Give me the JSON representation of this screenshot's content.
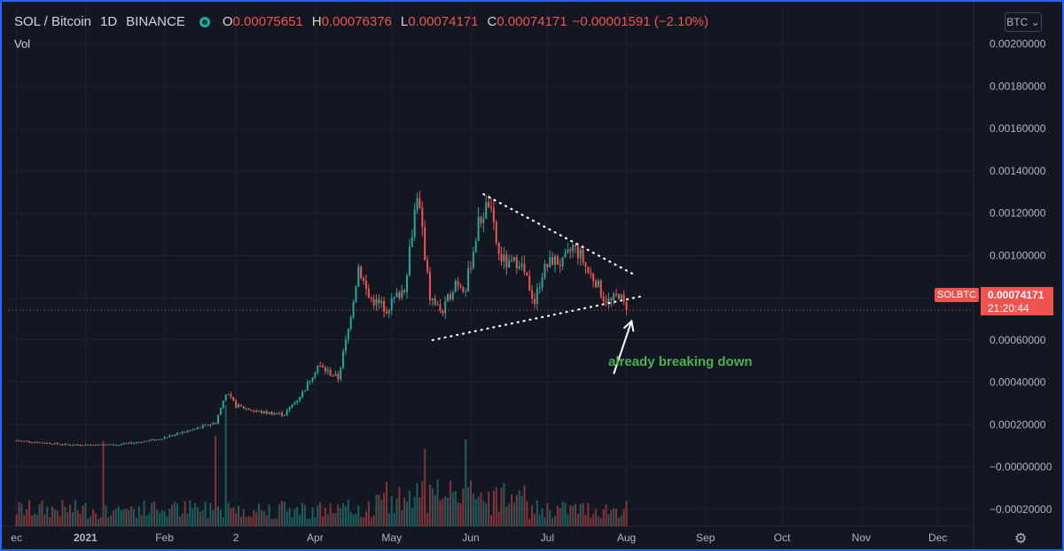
{
  "header": {
    "symbol": "SOL / Bitcoin",
    "interval": "1D",
    "exchange": "BINANCE",
    "ohlc": {
      "o_label": "O",
      "o": "0.00075651",
      "h_label": "H",
      "h": "0.00076376",
      "l_label": "L",
      "l": "0.00074171",
      "c_label": "C",
      "c": "0.00074171",
      "change": "−0.00001591 (−2.10%)"
    },
    "vol_label": "Vol"
  },
  "price_scale": {
    "currency_button": "BTC ⌄",
    "symbol_tag": "SOLBTC",
    "last_price": "0.00074171",
    "countdown": "21:20:44",
    "colors": {
      "up": "#26a69a",
      "down": "#ef5350",
      "background": "#131722",
      "frame": "#2962ff"
    }
  },
  "annotation": {
    "text": "already breaking down",
    "color": "#4caf50"
  },
  "chart_data": {
    "type": "candlestick",
    "ylim": [
      -0.00028,
      0.0022
    ],
    "y_ticks": [
      "0.00200000",
      "0.00180000",
      "0.00160000",
      "0.00140000",
      "0.00120000",
      "0.00100000",
      "0.00080000",
      "0.00060000",
      "0.00040000",
      "0.00020000",
      "−0.00000000",
      "−0.00020000"
    ],
    "y_tick_values": [
      0.002,
      0.0018,
      0.0016,
      0.0014,
      0.0012,
      0.001,
      0.0008,
      0.0006,
      0.0004,
      0.0002,
      0,
      -0.0002
    ],
    "x_ticks": [
      "ec",
      "2021",
      "Feb",
      "2",
      "Apr",
      "May",
      "Jun",
      "Jul",
      "Aug",
      "Sep",
      "Oct",
      "Nov",
      "Dec"
    ],
    "x_tick_days": [
      0,
      27,
      58,
      86,
      117,
      147,
      178,
      208,
      239,
      270,
      300,
      331,
      361
    ],
    "last_price": 0.00074171,
    "close_points": [
      [
        0,
        0.000125
      ],
      [
        20,
        0.000105
      ],
      [
        40,
        0.000105
      ],
      [
        55,
        0.00013
      ],
      [
        70,
        0.00018
      ],
      [
        78,
        0.00021
      ],
      [
        82,
        0.00035
      ],
      [
        86,
        0.00029
      ],
      [
        95,
        0.00026
      ],
      [
        105,
        0.00025
      ],
      [
        112,
        0.00035
      ],
      [
        118,
        0.00048
      ],
      [
        126,
        0.00042
      ],
      [
        130,
        0.00065
      ],
      [
        134,
        0.00095
      ],
      [
        138,
        0.0008
      ],
      [
        145,
        0.00075
      ],
      [
        152,
        0.00085
      ],
      [
        157,
        0.0013
      ],
      [
        162,
        0.0008
      ],
      [
        167,
        0.00073
      ],
      [
        172,
        0.00088
      ],
      [
        176,
        0.00085
      ],
      [
        181,
        0.00115
      ],
      [
        185,
        0.00125
      ],
      [
        189,
        0.001
      ],
      [
        193,
        0.00095
      ],
      [
        197,
        0.00098
      ],
      [
        201,
        0.00085
      ],
      [
        203,
        0.00078
      ],
      [
        206,
        0.00092
      ],
      [
        210,
        0.00098
      ],
      [
        214,
        0.00096
      ],
      [
        218,
        0.00104
      ],
      [
        221,
        0.001
      ],
      [
        224,
        0.00092
      ],
      [
        227,
        0.00088
      ],
      [
        230,
        0.0008
      ],
      [
        233,
        0.00078
      ],
      [
        236,
        0.00082
      ],
      [
        239,
        0.00074
      ]
    ],
    "volume": {
      "base_at_y": -0.00028
    },
    "trendlines": [
      {
        "name": "upper",
        "from": [
          183,
          0.00129
        ],
        "to": [
          242,
          0.00091
        ]
      },
      {
        "name": "lower",
        "from": [
          163,
          0.0006
        ],
        "to": [
          246,
          0.00081
        ]
      }
    ],
    "arrow": {
      "from": [
        234,
        0.00044
      ],
      "to": [
        241,
        0.00069
      ]
    }
  }
}
